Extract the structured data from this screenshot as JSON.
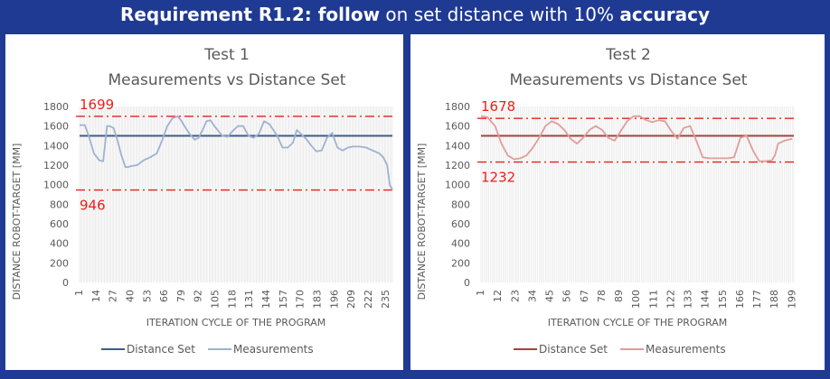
{
  "headline": {
    "prefix": "Requirement R1.2: follow",
    "middle": " on set distance with 10% ",
    "suffix": "accuracy"
  },
  "chart_data": [
    {
      "type": "line",
      "title": "Test 1",
      "subtitle": "Measurements vs Distance Set",
      "xlabel": "ITERATION CYCLE OF THE PROGRAM",
      "ylabel": "DISTANCE ROBOT-TARGET [MM]",
      "ylim": [
        0,
        1800
      ],
      "yticks": [
        0,
        200,
        400,
        600,
        800,
        1000,
        1200,
        1400,
        1600,
        1800
      ],
      "xlim": [
        1,
        240
      ],
      "xticks": [
        1,
        14,
        27,
        40,
        53,
        66,
        79,
        92,
        105,
        118,
        131,
        144,
        157,
        170,
        183,
        196,
        209,
        222,
        235
      ],
      "legend": "bottom",
      "annotations": [
        {
          "label": "1699",
          "value": 1699,
          "position": "above",
          "color": "#e8201c"
        },
        {
          "label": "946",
          "value": 946,
          "position": "below",
          "color": "#e8201c"
        }
      ],
      "series": [
        {
          "name": "Distance Set",
          "color": "#3e5d8a",
          "x": [
            1,
            240
          ],
          "values": [
            1500,
            1500
          ]
        },
        {
          "name": "Measurements",
          "color": "#9fb1d3",
          "x": [
            1,
            5,
            8,
            12,
            16,
            19,
            22,
            24,
            27,
            30,
            33,
            36,
            38,
            40,
            45,
            50,
            55,
            60,
            64,
            68,
            72,
            76,
            79,
            82,
            85,
            89,
            92,
            95,
            98,
            101,
            104,
            107,
            110,
            114,
            118,
            122,
            126,
            130,
            134,
            138,
            142,
            146,
            149,
            152,
            156,
            160,
            164,
            167,
            170,
            174,
            178,
            182,
            186,
            190,
            194,
            198,
            202,
            206,
            210,
            215,
            220,
            225,
            230,
            233,
            236,
            238,
            240
          ],
          "values": [
            1610,
            1610,
            1500,
            1320,
            1250,
            1240,
            1600,
            1600,
            1580,
            1450,
            1300,
            1180,
            1180,
            1190,
            1200,
            1250,
            1280,
            1320,
            1450,
            1600,
            1680,
            1700,
            1650,
            1580,
            1520,
            1460,
            1480,
            1560,
            1650,
            1660,
            1600,
            1550,
            1500,
            1490,
            1550,
            1600,
            1600,
            1500,
            1480,
            1520,
            1650,
            1620,
            1560,
            1500,
            1380,
            1380,
            1430,
            1560,
            1520,
            1470,
            1400,
            1340,
            1350,
            1480,
            1530,
            1380,
            1350,
            1380,
            1390,
            1390,
            1380,
            1350,
            1320,
            1280,
            1200,
            1000,
            946
          ]
        }
      ]
    },
    {
      "type": "line",
      "title": "Test 2",
      "subtitle": "Measurements vs Distance Set",
      "xlabel": "ITERATION CYCLE OF THE PROGRAM",
      "ylabel": "DISTANCE ROBOT-TARGET [MM]",
      "ylim": [
        0,
        1800
      ],
      "yticks": [
        0,
        200,
        400,
        600,
        800,
        1000,
        1200,
        1400,
        1600,
        1800
      ],
      "xlim": [
        1,
        200
      ],
      "xticks": [
        1,
        12,
        23,
        34,
        45,
        56,
        67,
        78,
        89,
        100,
        111,
        122,
        133,
        144,
        155,
        166,
        177,
        188,
        199
      ],
      "legend": "bottom",
      "annotations": [
        {
          "label": "1678",
          "value": 1678,
          "position": "above",
          "color": "#e8201c"
        },
        {
          "label": "1232",
          "value": 1232,
          "position": "below",
          "color": "#e8201c"
        }
      ],
      "series": [
        {
          "name": "Distance Set",
          "color": "#a04540",
          "x": [
            1,
            200
          ],
          "values": [
            1500,
            1500
          ]
        },
        {
          "name": "Measurements",
          "color": "#e09d9a",
          "x": [
            1,
            5,
            10,
            14,
            18,
            22,
            26,
            30,
            34,
            38,
            42,
            46,
            50,
            54,
            58,
            62,
            66,
            70,
            74,
            78,
            82,
            86,
            90,
            94,
            98,
            102,
            106,
            110,
            114,
            118,
            122,
            126,
            130,
            134,
            138,
            142,
            146,
            150,
            154,
            158,
            162,
            166,
            170,
            174,
            178,
            182,
            186,
            188,
            190,
            194,
            199
          ],
          "values": [
            1700,
            1690,
            1600,
            1420,
            1300,
            1260,
            1270,
            1300,
            1380,
            1480,
            1600,
            1650,
            1620,
            1560,
            1470,
            1420,
            1480,
            1560,
            1600,
            1560,
            1480,
            1450,
            1550,
            1650,
            1700,
            1700,
            1660,
            1640,
            1660,
            1650,
            1550,
            1470,
            1580,
            1600,
            1450,
            1280,
            1270,
            1270,
            1270,
            1270,
            1280,
            1480,
            1500,
            1350,
            1240,
            1240,
            1250,
            1300,
            1420,
            1450,
            1470
          ]
        }
      ]
    }
  ]
}
